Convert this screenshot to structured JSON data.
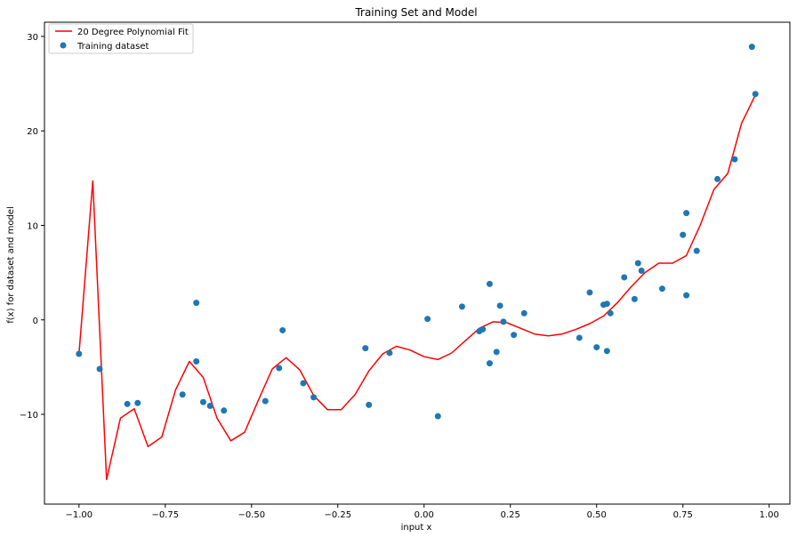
{
  "chart_data": {
    "type": "scatter",
    "title": "Training Set and Model",
    "xlabel": "input x",
    "ylabel": "f(x) for dataset and model",
    "xlim": [
      -1.1,
      1.06
    ],
    "ylim": [
      -19.5,
      31.5
    ],
    "grid": false,
    "legend_position": "top-left",
    "xticks": [
      -1.0,
      -0.75,
      -0.5,
      -0.25,
      0.0,
      0.25,
      0.5,
      0.75,
      1.0
    ],
    "xtick_labels": [
      "−1.00",
      "−0.75",
      "−0.50",
      "−0.25",
      "0.00",
      "0.25",
      "0.50",
      "0.75",
      "1.00"
    ],
    "yticks": [
      -10,
      0,
      10,
      20,
      30
    ],
    "ytick_labels": [
      "−10",
      "0",
      "10",
      "20",
      "30"
    ],
    "series": [
      {
        "name": "20 Degree Polynomial Fit",
        "kind": "line",
        "color": "#ff0000",
        "x": [
          -1.0,
          -0.96,
          -0.92,
          -0.88,
          -0.84,
          -0.8,
          -0.76,
          -0.72,
          -0.68,
          -0.64,
          -0.6,
          -0.56,
          -0.52,
          -0.48,
          -0.44,
          -0.4,
          -0.36,
          -0.32,
          -0.28,
          -0.24,
          -0.2,
          -0.16,
          -0.12,
          -0.08,
          -0.04,
          0.0,
          0.04,
          0.08,
          0.12,
          0.16,
          0.2,
          0.24,
          0.28,
          0.32,
          0.36,
          0.4,
          0.44,
          0.48,
          0.52,
          0.56,
          0.6,
          0.64,
          0.68,
          0.72,
          0.76,
          0.8,
          0.84,
          0.88,
          0.92,
          0.96
        ],
        "y": [
          -3.6,
          14.7,
          -16.9,
          -10.4,
          -9.4,
          -13.4,
          -12.4,
          -7.4,
          -4.4,
          -6.1,
          -10.4,
          -12.8,
          -11.9,
          -8.5,
          -5.2,
          -4.0,
          -5.3,
          -8.0,
          -9.5,
          -9.5,
          -7.9,
          -5.4,
          -3.6,
          -2.8,
          -3.2,
          -3.9,
          -4.2,
          -3.5,
          -2.2,
          -0.9,
          -0.2,
          -0.3,
          -0.9,
          -1.5,
          -1.7,
          -1.5,
          -1.0,
          -0.4,
          0.4,
          1.8,
          3.5,
          5.0,
          6.0,
          6.0,
          6.8,
          10.0,
          13.8,
          15.5,
          20.8,
          23.8
        ]
      },
      {
        "name": "Training dataset",
        "kind": "scatter",
        "color": "#1f77b4",
        "x": [
          -1.0,
          -0.94,
          -0.86,
          -0.83,
          -0.7,
          -0.66,
          -0.66,
          -0.64,
          -0.62,
          -0.58,
          -0.46,
          -0.42,
          -0.41,
          -0.35,
          -0.32,
          -0.17,
          -0.16,
          -0.1,
          0.01,
          0.04,
          0.11,
          0.16,
          0.17,
          0.19,
          0.19,
          0.21,
          0.22,
          0.23,
          0.26,
          0.29,
          0.45,
          0.48,
          0.5,
          0.52,
          0.53,
          0.53,
          0.54,
          0.58,
          0.61,
          0.62,
          0.63,
          0.69,
          0.75,
          0.76,
          0.76,
          0.79,
          0.85,
          0.9,
          0.95,
          0.96
        ],
        "y": [
          -3.6,
          -5.2,
          -8.9,
          -8.8,
          -7.9,
          1.8,
          -4.4,
          -8.7,
          -9.1,
          -9.6,
          -8.6,
          -5.1,
          -1.1,
          -6.7,
          -8.2,
          -3.0,
          -9.0,
          -3.5,
          0.1,
          -10.2,
          1.4,
          -1.2,
          -1.0,
          3.8,
          -4.6,
          -3.4,
          1.5,
          -0.2,
          -1.6,
          0.7,
          -1.9,
          2.9,
          -2.9,
          1.6,
          1.7,
          -3.3,
          0.7,
          4.5,
          2.2,
          6.0,
          5.2,
          3.3,
          9.0,
          11.3,
          2.6,
          7.3,
          14.9,
          17.0,
          28.9,
          23.9
        ]
      }
    ]
  }
}
